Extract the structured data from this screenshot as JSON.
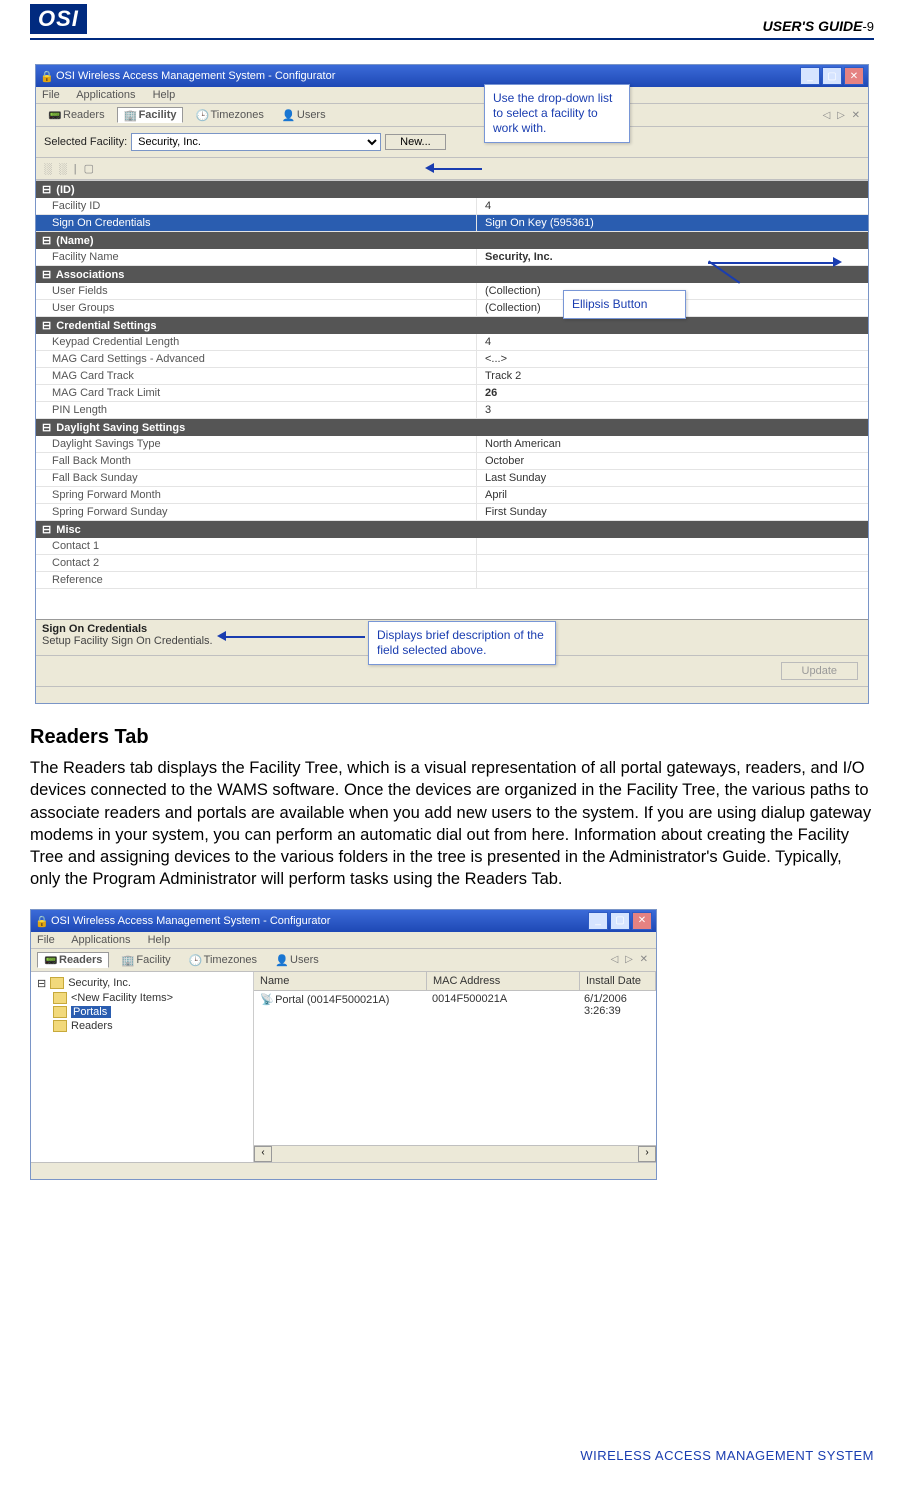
{
  "header": {
    "logo": "OSI",
    "guide": "USER'S GUIDE",
    "page": "-9"
  },
  "footer": "WIRELESS ACCESS MANAGEMENT SYSTEM",
  "callouts": {
    "c1": "Use the drop-down list to select a facility to work with.",
    "c2": "Ellipsis Button",
    "c3": "Displays brief description of the field selected above."
  },
  "screenshot1": {
    "title": "OSI Wireless Access Management System - Configurator",
    "menu": [
      "File",
      "Applications",
      "Help"
    ],
    "tabs": [
      "Readers",
      "Facility",
      "Timezones",
      "Users"
    ],
    "activeTab": "Facility",
    "tabx": "◁ ▷ ✕",
    "facLabel": "Selected Facility:",
    "facSelected": "Security, Inc.",
    "newBtn": "New...",
    "gridtoolbar": "░ ░ | ▢",
    "sections": [
      {
        "head": "(ID)",
        "rows": [
          {
            "l": "Facility ID",
            "r": "4",
            "muted": true
          },
          {
            "l": "Sign On Credentials",
            "r": "Sign On Key (595361)",
            "sel": true
          }
        ]
      },
      {
        "head": "(Name)",
        "rows": [
          {
            "l": "Facility Name",
            "r": "Security, Inc.",
            "boldR": true
          }
        ]
      },
      {
        "head": "Associations",
        "rows": [
          {
            "l": "User Fields",
            "r": "(Collection)"
          },
          {
            "l": "User Groups",
            "r": "(Collection)"
          }
        ]
      },
      {
        "head": "Credential Settings",
        "rows": [
          {
            "l": "Keypad Credential Length",
            "r": "4"
          },
          {
            "l": "MAG Card Settings - Advanced",
            "r": "<...>"
          },
          {
            "l": "MAG Card Track",
            "r": "Track 2"
          },
          {
            "l": "MAG Card Track Limit",
            "r": "26",
            "boldR": true
          },
          {
            "l": "PIN Length",
            "r": "3"
          }
        ]
      },
      {
        "head": "Daylight Saving Settings",
        "rows": [
          {
            "l": "Daylight Savings Type",
            "r": "North American"
          },
          {
            "l": "Fall Back Month",
            "r": "October"
          },
          {
            "l": "Fall Back Sunday",
            "r": "Last Sunday"
          },
          {
            "l": "Spring Forward Month",
            "r": "April"
          },
          {
            "l": "Spring Forward Sunday",
            "r": "First Sunday"
          }
        ]
      },
      {
        "head": "Misc",
        "rows": [
          {
            "l": "Contact 1",
            "r": ""
          },
          {
            "l": "Contact 2",
            "r": ""
          },
          {
            "l": "Reference",
            "r": ""
          }
        ]
      }
    ],
    "desc": {
      "t": "Sign On Credentials",
      "b": "Setup Facility Sign On Credentials."
    },
    "update": "Update"
  },
  "body": {
    "h": "Readers Tab",
    "p": "The Readers tab displays the Facility Tree, which is a visual representation of all portal gateways, readers, and I/O devices connected to the WAMS software.   Once the devices are organized in the Facility Tree, the various paths to associate readers and portals are available when you add new users to the system. If you are using dialup gateway modems in your system, you can perform an automatic dial out from here. Information about creating the Facility Tree and assigning devices to the various folders in the tree is presented in the Administrator's Guide. Typically, only the Program Administrator will perform tasks using the Readers Tab."
  },
  "screenshot2": {
    "title": "OSI Wireless Access Management System - Configurator",
    "menu": [
      "File",
      "Applications",
      "Help"
    ],
    "tabs": [
      "Readers",
      "Facility",
      "Timezones",
      "Users"
    ],
    "activeTab": "Readers",
    "tabx": "◁ ▷ ✕",
    "tree": {
      "root": "Security, Inc.",
      "children": [
        "<New Facility Items>",
        "Portals",
        "Readers"
      ],
      "selected": "Portals"
    },
    "list": {
      "cols": [
        "Name",
        "MAC Address",
        "Install Date"
      ],
      "widths": [
        160,
        140,
        115
      ],
      "rows": [
        {
          "name": "Portal (0014F500021A)",
          "mac": "0014F500021A",
          "date": "6/1/2006 3:26:39"
        }
      ]
    }
  },
  "colors": {
    "brand": "#002a7f",
    "link": "#1a3db0",
    "xpblue": "#3b6bd8",
    "eceface": "#ece9d8",
    "selrow": "#2a5db0"
  }
}
